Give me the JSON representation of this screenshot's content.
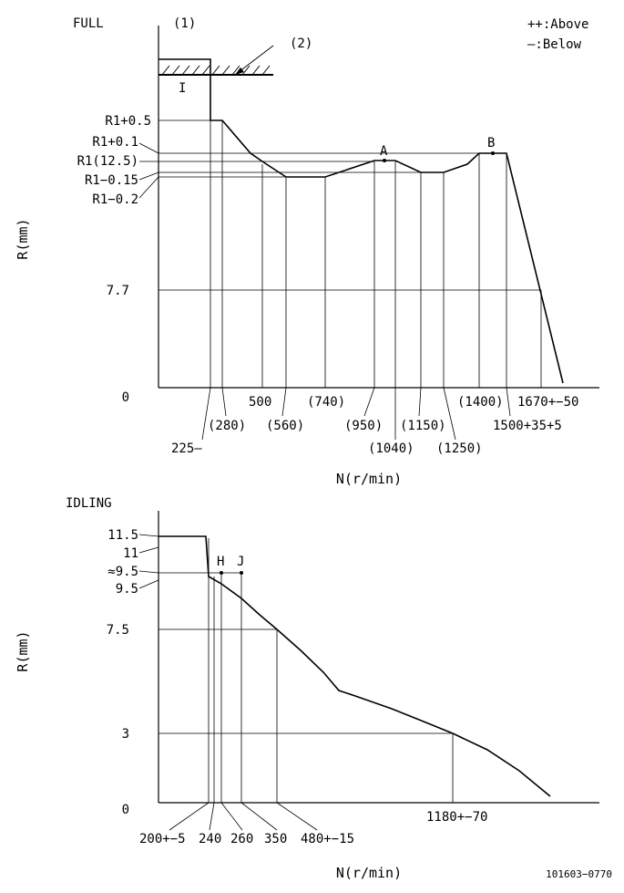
{
  "full": {
    "title": "FULL",
    "ref1": "(1)",
    "ref2": "(2)",
    "legend_above": "++:Above",
    "legend_below": "—:Below",
    "stop_mark": "I",
    "point_a": "A",
    "point_b": "B",
    "y_axis_label": "R(mm)",
    "x_axis_label": "N(r/min)",
    "y_labels": [
      "R1+0.5",
      "R1+0.1",
      "R1(12.5)",
      "R1−0.15",
      "R1−0.2",
      "7.7",
      "0"
    ],
    "x_labels": [
      "225—",
      "(280)",
      "500",
      "(560)",
      "(740)",
      "(950)",
      "(1040)",
      "(1150)",
      "(1250)",
      "(1400)",
      "1500+35+5",
      "1670+−50"
    ]
  },
  "idling": {
    "title": "IDLING",
    "point_h": "H",
    "point_j": "J",
    "y_axis_label": "R(mm)",
    "x_axis_label": "N(r/min)",
    "y_labels": [
      "11.5",
      "11",
      "≈9.5",
      "9.5",
      "7.5",
      "3",
      "0"
    ],
    "x_labels": [
      "200+−5",
      "240",
      "260",
      "350",
      "480+−15",
      "1180+−70"
    ]
  },
  "doc_number": "101603−0770"
}
